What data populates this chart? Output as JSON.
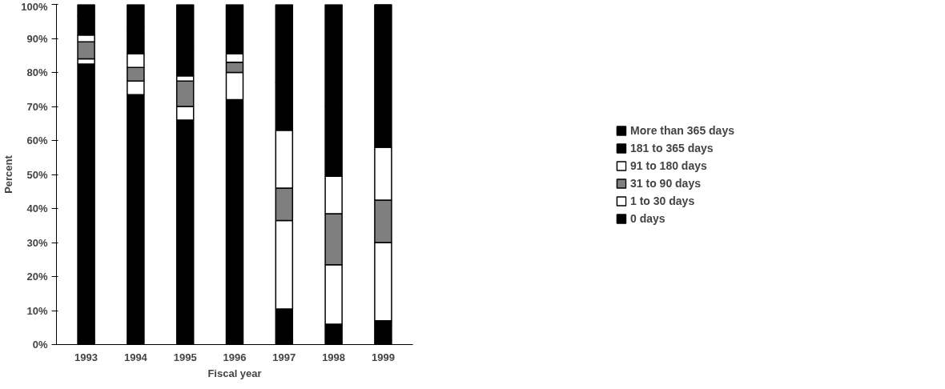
{
  "chart_data": {
    "type": "bar",
    "stacked": true,
    "xlabel": "Fiscal year",
    "ylabel": "Percent",
    "categories": [
      "1993",
      "1994",
      "1995",
      "1996",
      "1997",
      "1998",
      "1999"
    ],
    "series": [
      {
        "name": "0 days",
        "color": "#000000",
        "values": [
          82.5,
          73.5,
          66,
          72,
          10.5,
          6,
          7
        ]
      },
      {
        "name": "1 to 30 days",
        "color": "#ffffff",
        "values": [
          1.5,
          4,
          4,
          8,
          26,
          17.5,
          23
        ]
      },
      {
        "name": "31 to 90 days",
        "color": "#7f7f7f",
        "values": [
          5,
          4,
          7.5,
          3,
          9.5,
          15,
          12.5
        ]
      },
      {
        "name": "91 to 180 days",
        "color": "#ffffff",
        "values": [
          2,
          4,
          1.5,
          2.5,
          17,
          11,
          15.5
        ]
      },
      {
        "name": "181 to 365 days",
        "color": "#000000",
        "values": [
          5.5,
          8,
          9,
          5.5,
          14,
          20.5,
          42
        ]
      },
      {
        "name": "More than 365 days",
        "color": "#000000",
        "values": [
          3.5,
          6.5,
          12,
          9,
          23,
          30,
          0
        ]
      }
    ],
    "ylim": [
      0,
      100
    ],
    "yticks": [
      {
        "value": 0,
        "label": "0%"
      },
      {
        "value": 10,
        "label": "10%"
      },
      {
        "value": 20,
        "label": "20%"
      },
      {
        "value": 30,
        "label": "30%"
      },
      {
        "value": 40,
        "label": "40%"
      },
      {
        "value": 50,
        "label": "50%"
      },
      {
        "value": 60,
        "label": "60%"
      },
      {
        "value": 70,
        "label": "70%"
      },
      {
        "value": 80,
        "label": "80%"
      },
      {
        "value": 90,
        "label": "90%"
      },
      {
        "value": 100,
        "label": "100%"
      }
    ],
    "legend": "right"
  }
}
